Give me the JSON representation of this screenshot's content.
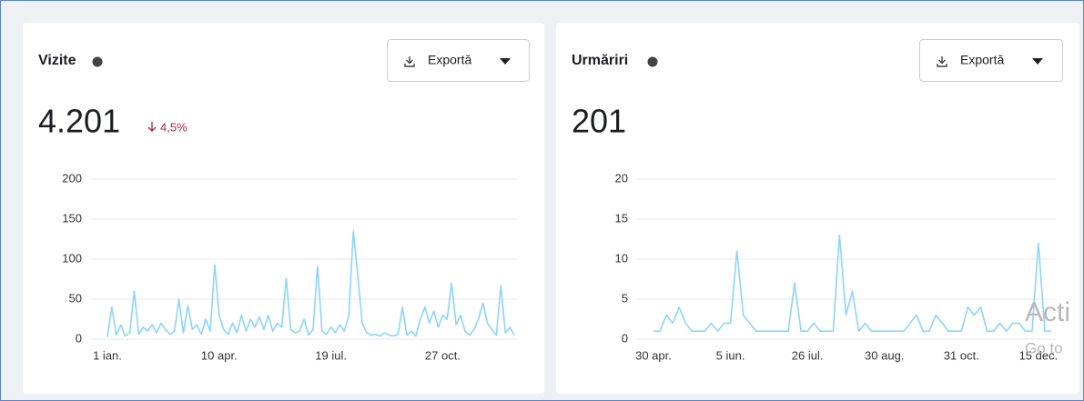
{
  "chart_data": [
    {
      "type": "line",
      "title": "Vizite",
      "headline": "4.201",
      "change": "4,5%",
      "button": "Exportă",
      "categories": [
        "1 ian.",
        null,
        null,
        null,
        null,
        null,
        null,
        null,
        null,
        null,
        null,
        null,
        null,
        null,
        null,
        null,
        null,
        null,
        null,
        null,
        null,
        null,
        null,
        null,
        null,
        "10 apr.",
        null,
        null,
        null,
        null,
        null,
        null,
        null,
        null,
        null,
        null,
        null,
        null,
        null,
        null,
        null,
        null,
        null,
        null,
        null,
        null,
        null,
        null,
        null,
        null,
        "19 iul.",
        null,
        null,
        null,
        null,
        null,
        null,
        null,
        null,
        null,
        null,
        null,
        null,
        null,
        null,
        null,
        null,
        null,
        null,
        null,
        null,
        null,
        null,
        null,
        null,
        "27 oct.",
        null,
        null,
        null,
        null,
        null,
        null,
        null,
        null,
        null,
        null,
        null,
        null,
        null,
        null,
        null,
        null
      ],
      "values": [
        3,
        40,
        5,
        18,
        4,
        8,
        60,
        6,
        15,
        10,
        18,
        8,
        20,
        12,
        6,
        10,
        50,
        8,
        42,
        12,
        18,
        6,
        25,
        10,
        93,
        30,
        12,
        6,
        20,
        8,
        30,
        10,
        25,
        15,
        28,
        12,
        30,
        10,
        20,
        15,
        76,
        12,
        8,
        10,
        25,
        5,
        12,
        91,
        10,
        6,
        15,
        8,
        18,
        10,
        30,
        135,
        80,
        20,
        8,
        5,
        6,
        4,
        8,
        5,
        4,
        6,
        40,
        5,
        10,
        4,
        25,
        40,
        20,
        35,
        15,
        30,
        25,
        70,
        18,
        30,
        10,
        5,
        12,
        25,
        45,
        20,
        12,
        5,
        67,
        8,
        15,
        5
      ],
      "color": "#8ed4f8",
      "ylim": [
        0,
        200
      ],
      "yticks": [
        0,
        50,
        100,
        150,
        200
      ],
      "grid": true
    },
    {
      "type": "line",
      "title": "Urmăriri",
      "headline": "201",
      "button": "Exportă",
      "categories": [
        "30 apr.",
        null,
        null,
        null,
        null,
        null,
        null,
        null,
        null,
        null,
        null,
        null,
        "5 iun.",
        null,
        null,
        null,
        null,
        null,
        null,
        null,
        null,
        null,
        null,
        null,
        "26 iul.",
        null,
        null,
        null,
        null,
        null,
        null,
        null,
        null,
        null,
        null,
        null,
        "30 aug.",
        null,
        null,
        null,
        null,
        null,
        null,
        null,
        null,
        null,
        null,
        null,
        "31 oct.",
        null,
        null,
        null,
        null,
        null,
        null,
        null,
        null,
        null,
        null,
        null,
        "15 dec.",
        null,
        null
      ],
      "values": [
        1,
        1,
        3,
        2,
        4,
        2,
        1,
        1,
        1,
        2,
        1,
        2,
        2,
        11,
        3,
        2,
        1,
        1,
        1,
        1,
        1,
        1,
        7,
        1,
        1,
        2,
        1,
        1,
        1,
        13,
        3,
        6,
        1,
        2,
        1,
        1,
        1,
        1,
        1,
        1,
        2,
        3,
        1,
        1,
        3,
        2,
        1,
        1,
        1,
        4,
        3,
        4,
        1,
        1,
        2,
        1,
        2,
        2,
        1,
        1,
        12,
        1,
        1
      ],
      "color": "#8ed4f8",
      "ylim": [
        0,
        20
      ],
      "yticks": [
        0,
        5,
        10,
        15,
        20
      ],
      "grid": true
    }
  ],
  "watermark": [
    "Acti",
    "Go to"
  ]
}
